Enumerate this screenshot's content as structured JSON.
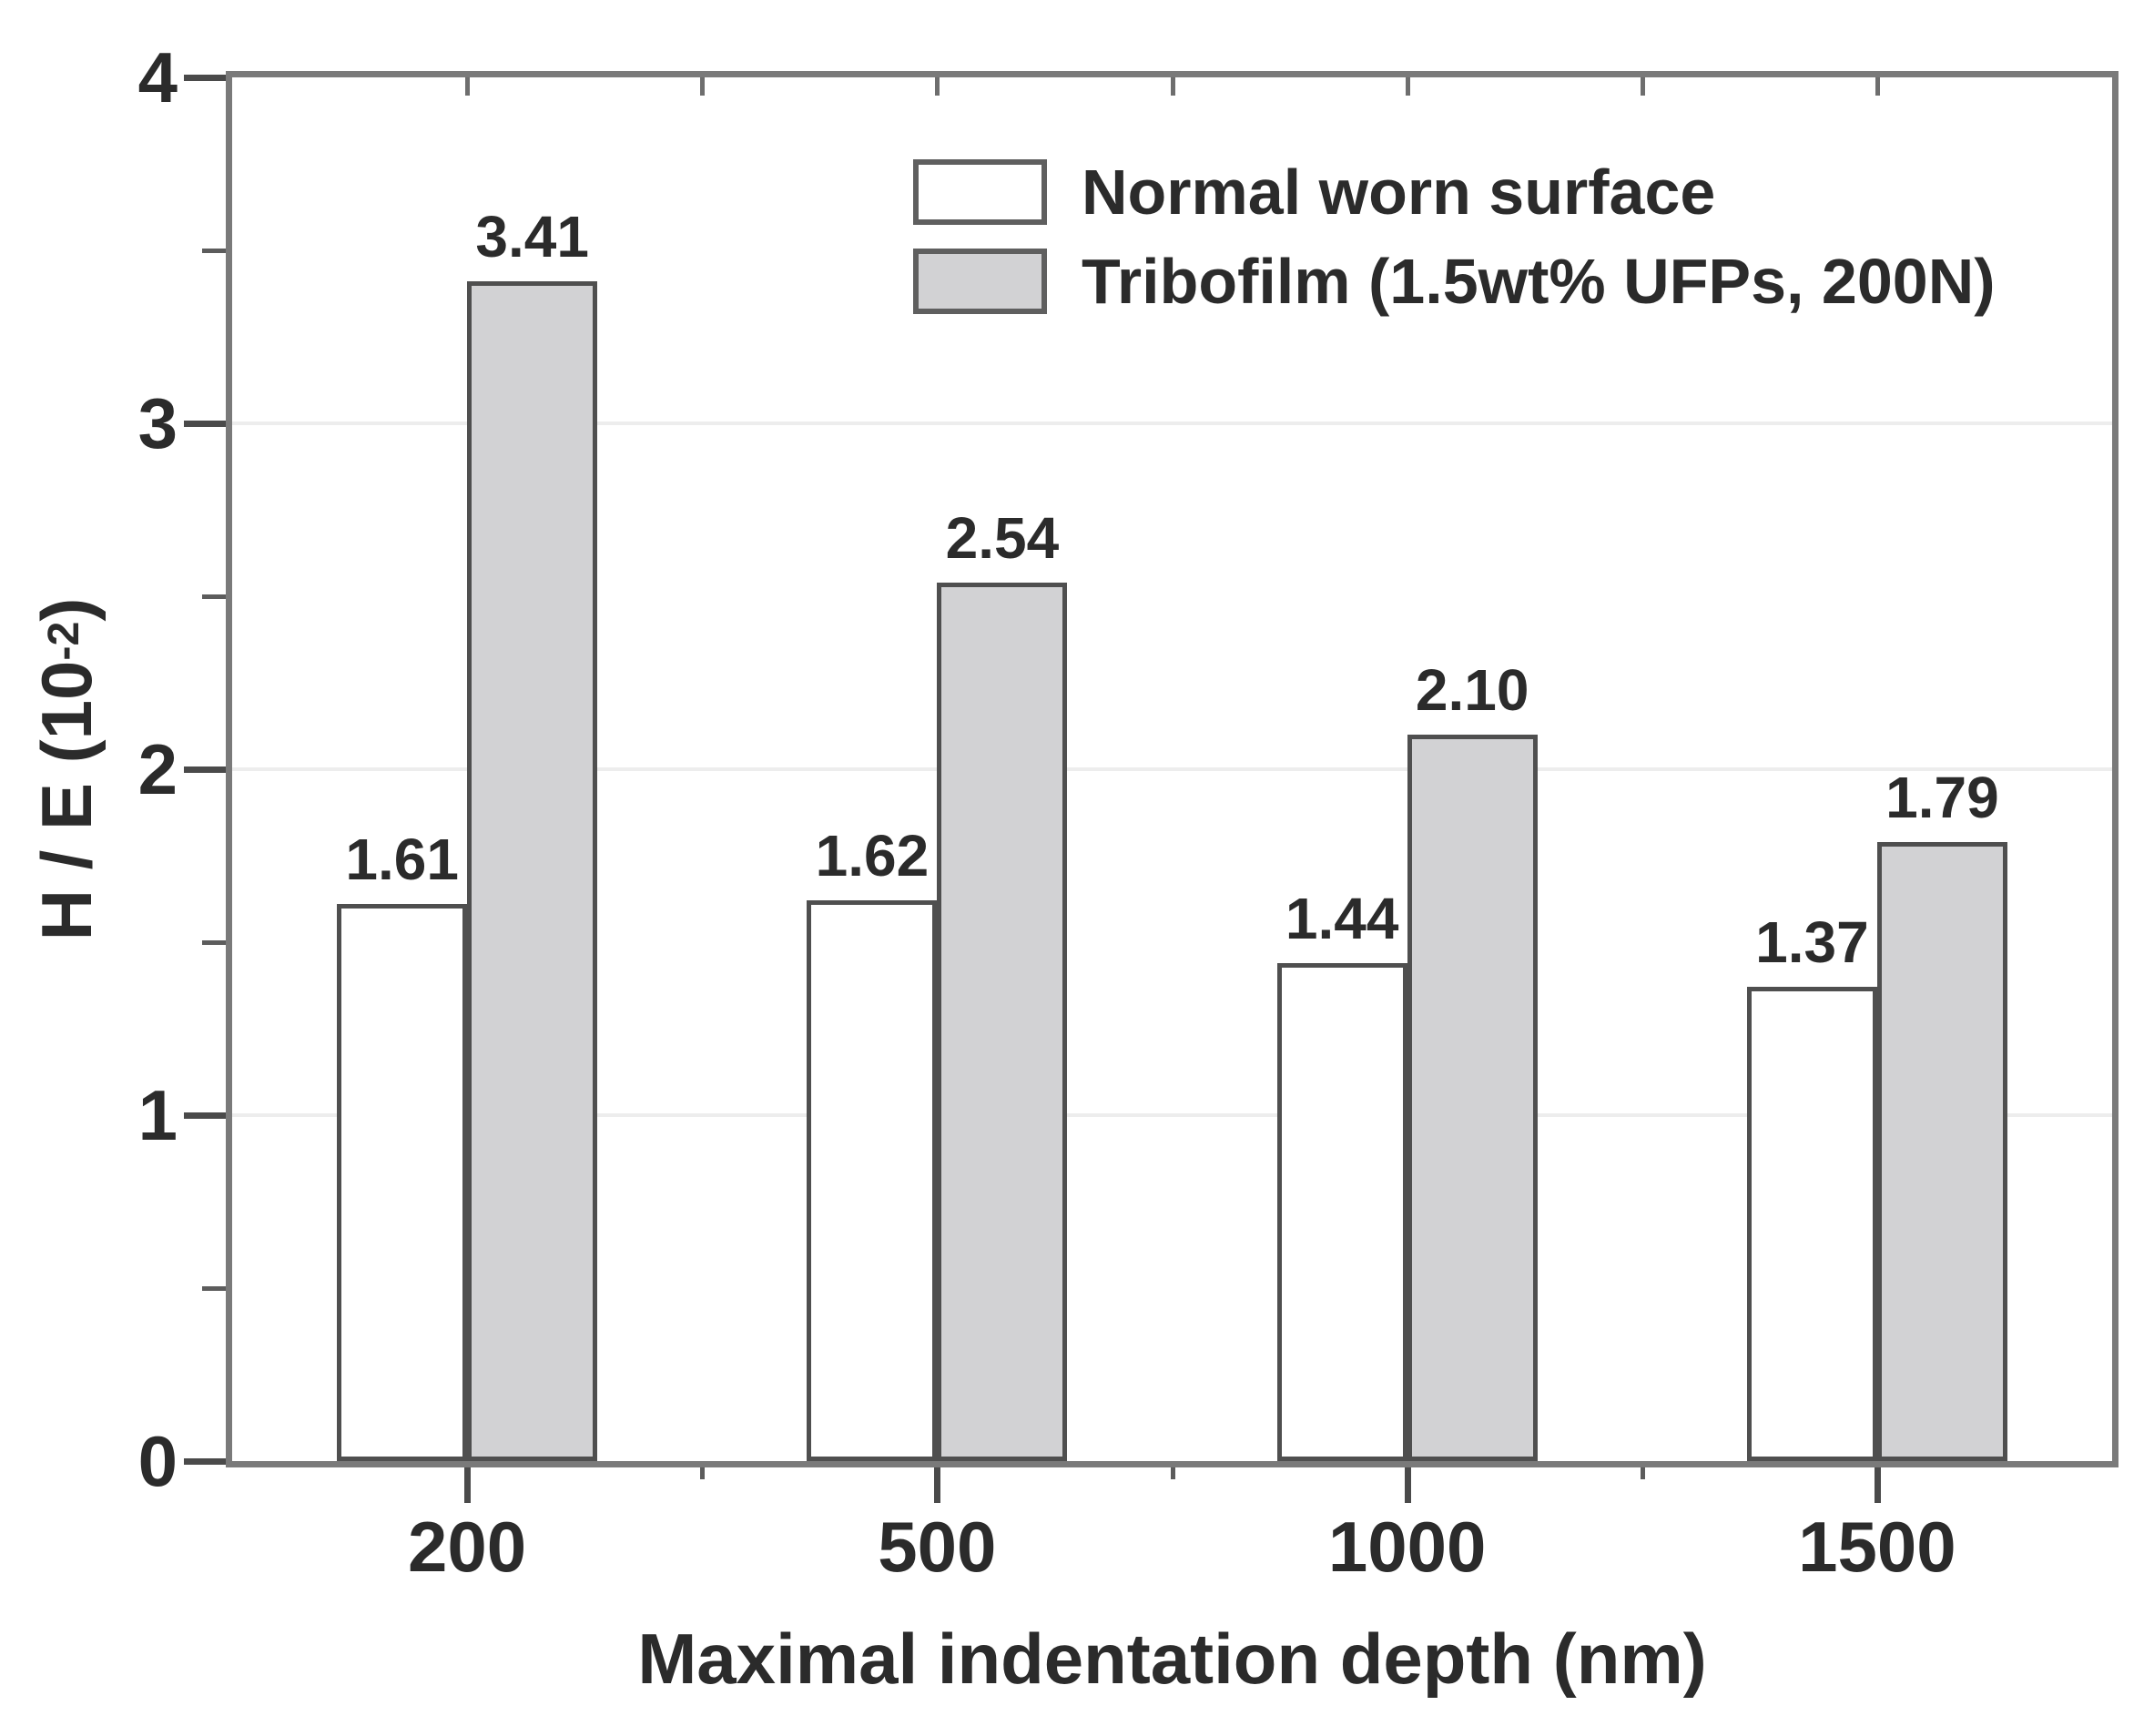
{
  "figure": {
    "y_axis": {
      "title_prefix": "H / E (10",
      "title_sup": "-2",
      "title_suffix": ")"
    },
    "x_axis": {
      "title": "Maximal indentation depth (nm)"
    },
    "legend_items": [
      {
        "label": "Normal worn surface",
        "fill": "#ffffff"
      },
      {
        "label": "Tribofilm (1.5wt% UFPs, 200N)",
        "fill": "#d2d2d4"
      }
    ]
  },
  "chart_data": {
    "type": "bar",
    "title": "",
    "categories": [
      "200",
      "500",
      "1000",
      "1500"
    ],
    "xlabel": "Maximal indentation depth (nm)",
    "ylabel": "H / E (10^-2)",
    "ylim": [
      0,
      4
    ],
    "yticks": [
      "0",
      "1",
      "2",
      "3",
      "4"
    ],
    "grid_values": [
      1,
      2,
      3
    ],
    "grid": "horizontal-light",
    "legend_position": "inside-top-center",
    "bar_border_color": "#4f4f4f",
    "frame_color": "#7a7a7a",
    "series": [
      {
        "name": "Normal worn surface",
        "fill": "#ffffff",
        "values": [
          1.61,
          1.62,
          1.44,
          1.37
        ],
        "labels": [
          "1.61",
          "1.62",
          "1.44",
          "1.37"
        ]
      },
      {
        "name": "Tribofilm (1.5wt% UFPs, 200N)",
        "fill": "#d2d2d4",
        "values": [
          3.41,
          2.54,
          2.1,
          1.79
        ],
        "labels": [
          "3.41",
          "2.54",
          "2.10",
          "1.79"
        ]
      }
    ]
  }
}
